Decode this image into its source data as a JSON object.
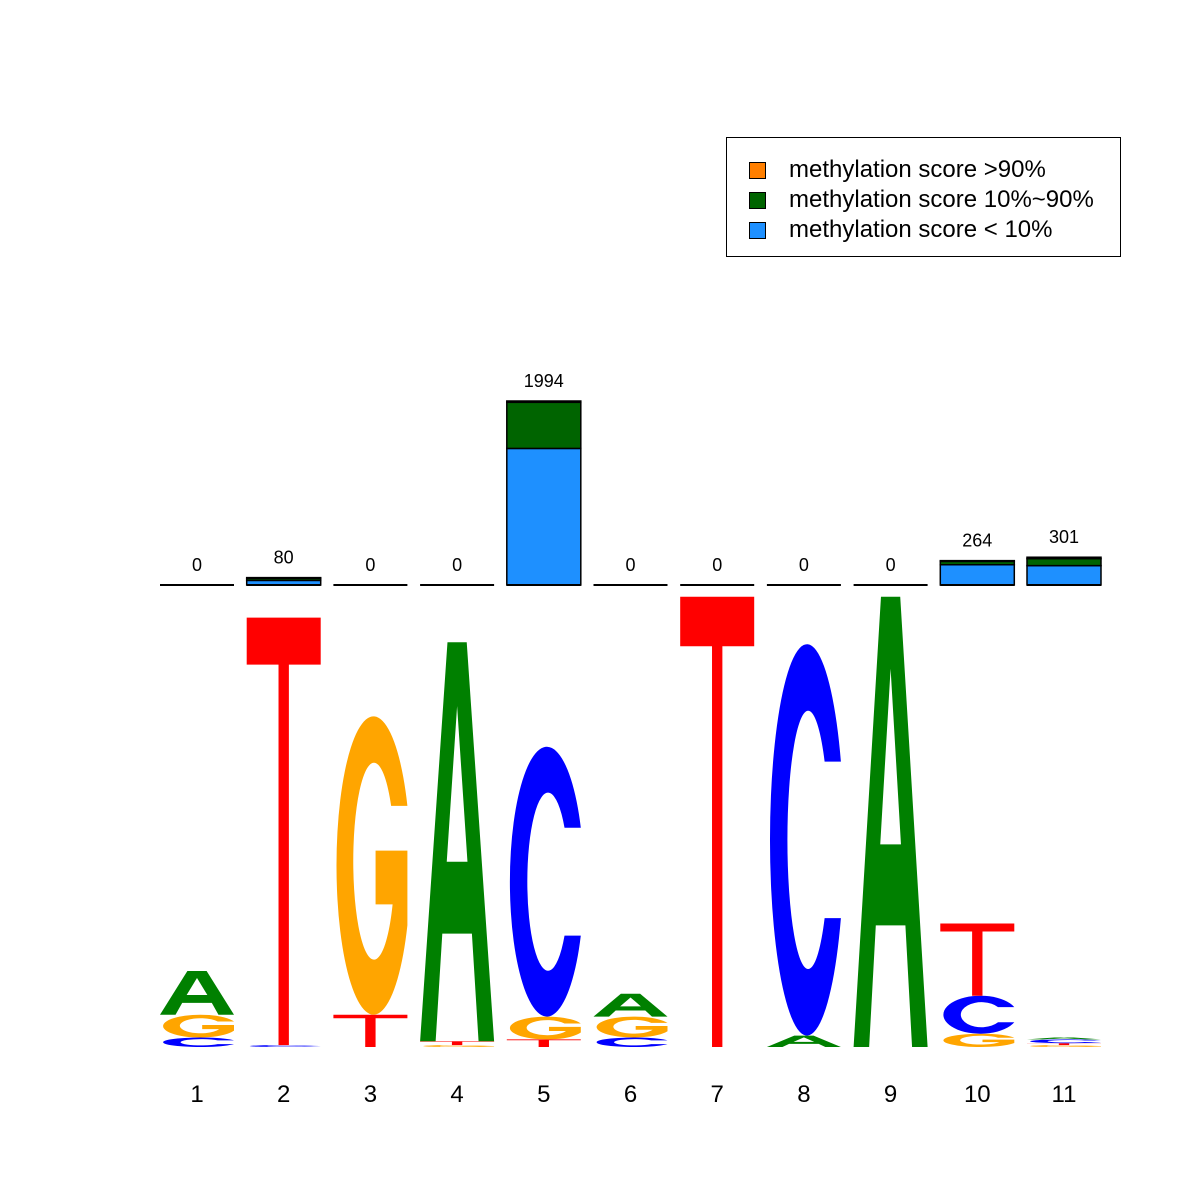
{
  "chart_data": {
    "type": "sequence-logo-with-stacked-bars",
    "positions": [
      "1",
      "2",
      "3",
      "4",
      "5",
      "6",
      "7",
      "8",
      "9",
      "10",
      "11"
    ],
    "logo": [
      [
        {
          "letter": "C",
          "bits": 0.05
        },
        {
          "letter": "G",
          "bits": 0.12
        },
        {
          "letter": "A",
          "bits": 0.23
        }
      ],
      [
        {
          "letter": "C",
          "bits": 0.01
        },
        {
          "letter": "T",
          "bits": 2.25
        }
      ],
      [
        {
          "letter": "T",
          "bits": 0.17
        },
        {
          "letter": "G",
          "bits": 1.57
        }
      ],
      [
        {
          "letter": "G",
          "bits": 0.01
        },
        {
          "letter": "T",
          "bits": 0.02
        },
        {
          "letter": "A",
          "bits": 2.1
        }
      ],
      [
        {
          "letter": "T",
          "bits": 0.04
        },
        {
          "letter": "G",
          "bits": 0.12
        },
        {
          "letter": "C",
          "bits": 1.42
        }
      ],
      [
        {
          "letter": "C",
          "bits": 0.05
        },
        {
          "letter": "G",
          "bits": 0.11
        },
        {
          "letter": "A",
          "bits": 0.12
        }
      ],
      [
        {
          "letter": "T",
          "bits": 2.37
        }
      ],
      [
        {
          "letter": "A",
          "bits": 0.06
        },
        {
          "letter": "C",
          "bits": 2.06
        }
      ],
      [
        {
          "letter": "A",
          "bits": 2.37
        }
      ],
      [
        {
          "letter": "G",
          "bits": 0.07
        },
        {
          "letter": "C",
          "bits": 0.2
        },
        {
          "letter": "T",
          "bits": 0.38
        }
      ],
      [
        {
          "letter": "G",
          "bits": 0.01
        },
        {
          "letter": "T",
          "bits": 0.01
        },
        {
          "letter": "C",
          "bits": 0.02
        },
        {
          "letter": "A",
          "bits": 0.01
        }
      ]
    ],
    "bars": {
      "counts": [
        0,
        80,
        0,
        0,
        1994,
        0,
        0,
        0,
        0,
        264,
        301
      ],
      "count_labels": [
        "0",
        "80",
        "0",
        "0",
        "1994",
        "0",
        "0",
        "0",
        "0",
        "264",
        "301"
      ],
      "series": [
        {
          "name": "methylation score < 10%",
          "values": [
            0,
            50,
            0,
            0,
            1480,
            0,
            0,
            0,
            0,
            220,
            210
          ]
        },
        {
          "name": "methylation score 10%~90%",
          "values": [
            0,
            22,
            0,
            0,
            500,
            0,
            0,
            0,
            0,
            36,
            76
          ]
        },
        {
          "name": "methylation score >90%",
          "values": [
            0,
            8,
            0,
            0,
            14,
            0,
            0,
            0,
            0,
            8,
            15
          ]
        }
      ]
    }
  },
  "legend": {
    "items": [
      {
        "label": "methylation score >90%",
        "color": "#ff7f00"
      },
      {
        "label": "methylation score 10%~90%",
        "color": "#006400"
      },
      {
        "label": "methylation score < 10%",
        "color": "#1e90ff"
      }
    ]
  },
  "colors": {
    "A": "#008000",
    "C": "#0000ff",
    "G": "#ffa500",
    "T": "#ff0000"
  }
}
